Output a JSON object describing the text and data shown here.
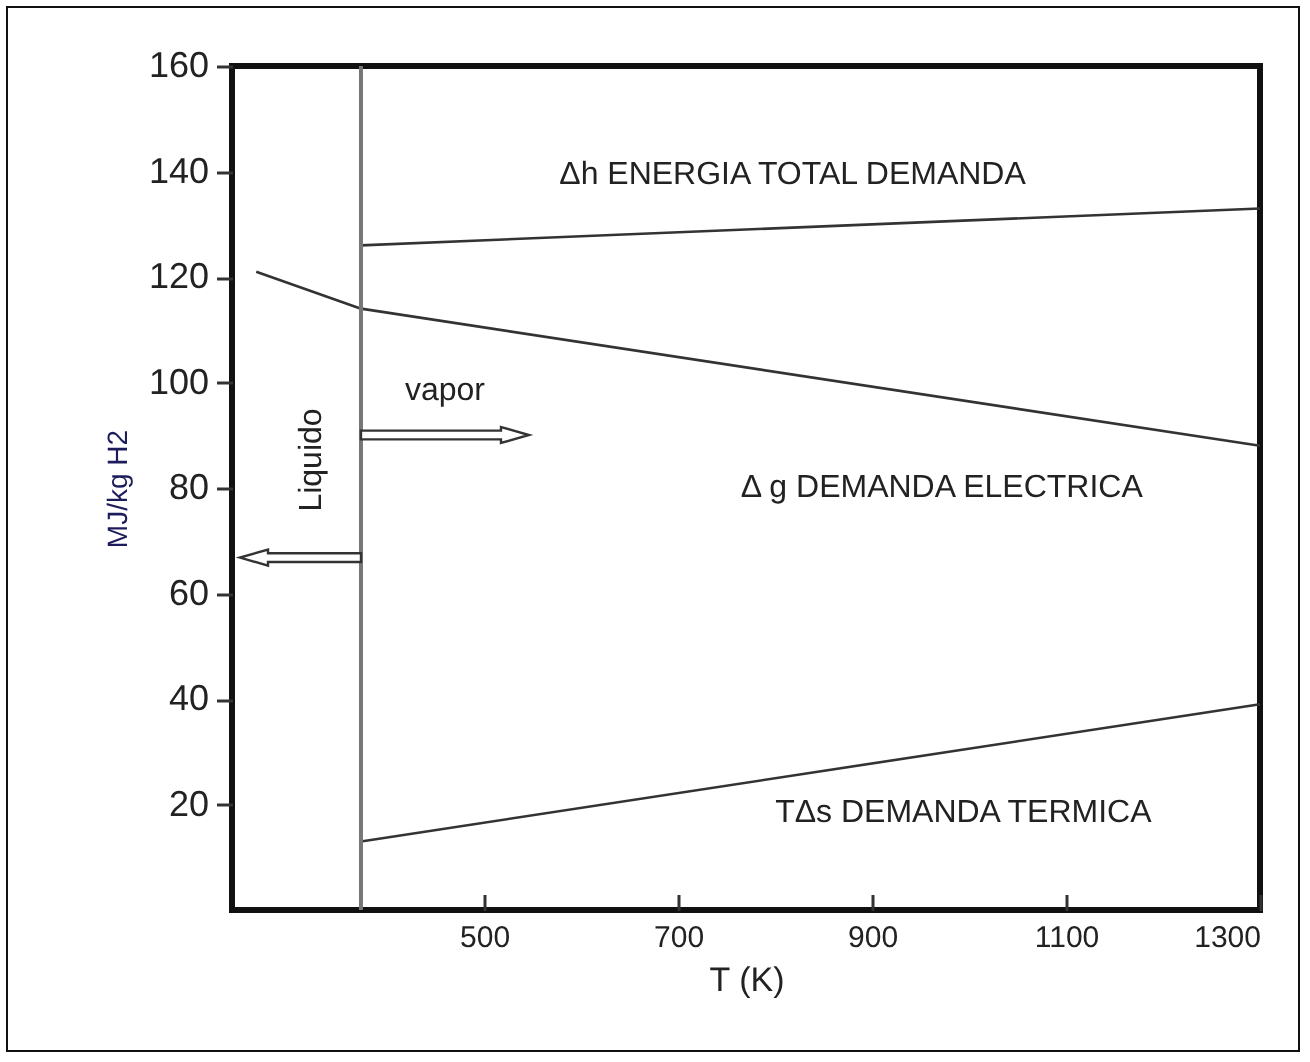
{
  "chart_data": {
    "type": "line",
    "xlabel": "T (K)",
    "ylabel": "MJ/kg H2",
    "xlim": [
      240,
      1300
    ],
    "ylim": [
      0,
      160
    ],
    "xticks": [
      500,
      700,
      900,
      1100,
      1300
    ],
    "yticks": [
      20,
      40,
      60,
      80,
      100,
      120,
      140,
      160
    ],
    "grid": false,
    "legend": false,
    "marker": "none",
    "line_style": "solid",
    "series": [
      {
        "name": "Δh ENERGIA TOTAL DEMANDA",
        "color": "#333333",
        "x": [
          373,
          1300
        ],
        "values": [
          126,
          133
        ]
      },
      {
        "name": "Δ g DEMANDA ELECTRICA",
        "color": "#333333",
        "x": [
          265,
          373,
          1300
        ],
        "values": [
          121,
          114,
          88
        ]
      },
      {
        "name": "TΔs DEMANDA TERMICA",
        "color": "#333333",
        "x": [
          373,
          1300
        ],
        "values": [
          13,
          39
        ]
      }
    ],
    "ref_lines": [
      {
        "axis": "x",
        "value": 373,
        "color": "#777777"
      }
    ],
    "annotations": [
      "vapor",
      "Liquido"
    ]
  }
}
